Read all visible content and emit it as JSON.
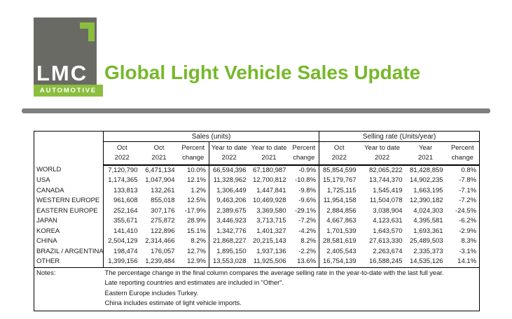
{
  "logo": {
    "text": "LMC",
    "subtext": "AUTOMOTIVE"
  },
  "title": "Global Light Vehicle Sales Update",
  "colors": {
    "brand_green_title": "#76b82a",
    "brand_green_logo": "#8cbe3e",
    "logo_gray": "#696a64",
    "divider_gray": "#7f7f7f",
    "table_border": "#000000"
  },
  "table": {
    "sections": [
      {
        "label": "Sales (units)",
        "colspan": 6
      },
      {
        "label": "Selling rate (Units/year)",
        "colspan": 4
      }
    ],
    "columns": [
      {
        "line1": "Oct",
        "line2": "2022"
      },
      {
        "line1": "Oct",
        "line2": "2021"
      },
      {
        "line1": "Percent",
        "line2": "change"
      },
      {
        "line1": "Year to date",
        "line2": "2022"
      },
      {
        "line1": "Year to date",
        "line2": "2021"
      },
      {
        "line1": "Percent",
        "line2": "change"
      },
      {
        "line1": "Oct",
        "line2": "2022"
      },
      {
        "line1": "Year to date",
        "line2": "2022"
      },
      {
        "line1": "Year",
        "line2": "2021"
      },
      {
        "line1": "Percent",
        "line2": "change"
      }
    ],
    "rows": [
      {
        "label": "WORLD",
        "values": [
          "7,120,790",
          "6,471,134",
          "10.0%",
          "66,594,396",
          "67,180,987",
          "-0.9%",
          "85,854,599",
          "82,065,222",
          "81,428,859",
          "0.8%"
        ]
      },
      {
        "label": "USA",
        "values": [
          "1,174,365",
          "1,047,904",
          "12.1%",
          "11,328,962",
          "12,700,812",
          "-10.8%",
          "15,179,767",
          "13,744,370",
          "14,902,235",
          "-7.8%"
        ]
      },
      {
        "label": "CANADA",
        "values": [
          "133,813",
          "132,261",
          "1.2%",
          "1,306,449",
          "1,447,841",
          "-9.8%",
          "1,725,115",
          "1,545,419",
          "1,663,195",
          "-7.1%"
        ]
      },
      {
        "label": "WESTERN EUROPE",
        "values": [
          "961,608",
          "855,018",
          "12.5%",
          "9,463,206",
          "10,469,928",
          "-9.6%",
          "11,954,158",
          "11,504,078",
          "12,390,182",
          "-7.2%"
        ]
      },
      {
        "label": "EASTERN EUROPE",
        "values": [
          "252,164",
          "307,176",
          "-17.9%",
          "2,389,675",
          "3,369,580",
          "-29.1%",
          "2,884,856",
          "3,038,904",
          "4,024,303",
          "-24.5%"
        ]
      },
      {
        "label": "JAPAN",
        "values": [
          "355,671",
          "275,872",
          "28.9%",
          "3,446,923",
          "3,713,715",
          "-7.2%",
          "4,667,863",
          "4,123,631",
          "4,395,581",
          "-6.2%"
        ]
      },
      {
        "label": "KOREA",
        "values": [
          "141,410",
          "122,896",
          "15.1%",
          "1,342,776",
          "1,401,327",
          "-4.2%",
          "1,701,539",
          "1,643,570",
          "1,693,361",
          "-2.9%"
        ]
      },
      {
        "label": "CHINA",
        "values": [
          "2,504,129",
          "2,314,466",
          "8.2%",
          "21,868,227",
          "20,215,143",
          "8.2%",
          "28,581,619",
          "27,613,330",
          "25,489,503",
          "8.3%"
        ]
      },
      {
        "label": "BRAZIL / ARGENTINA",
        "values": [
          "198,474",
          "176,057",
          "12.7%",
          "1,895,150",
          "1,937,136",
          "-2.2%",
          "2,405,543",
          "2,263,674",
          "2,335,373",
          "-3.1%"
        ]
      },
      {
        "label": "OTHER",
        "values": [
          "1,399,156",
          "1,239,484",
          "12.9%",
          "13,553,028",
          "11,925,506",
          "13.6%",
          "16,754,139",
          "16,588,245",
          "14,535,126",
          "14.1%"
        ]
      }
    ],
    "notes_label": "Notes:",
    "notes": [
      "The percentage change in the final column compares the average selling rate in the year-to-date with the last full year.",
      "Late reporting countries and estimates are included in \"Other\".",
      "Eastern Europe includes Turkey.",
      "China includes estimate of light vehicle imports."
    ]
  }
}
